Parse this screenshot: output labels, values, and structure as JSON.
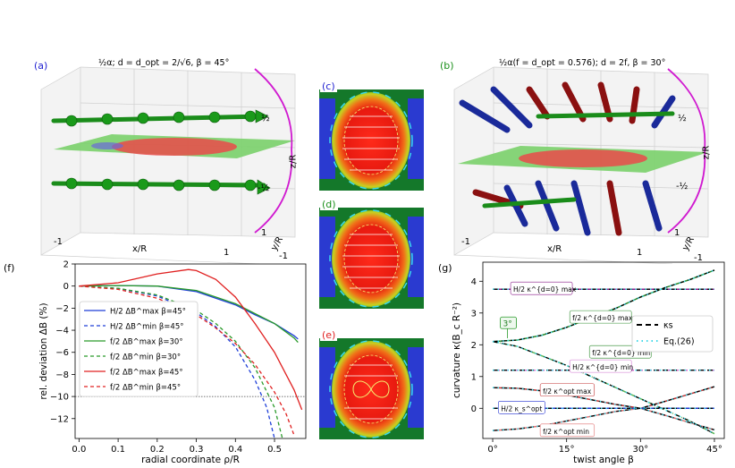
{
  "panels": {
    "a": {
      "label": "(a)",
      "caption": "½α;  d = d_opt = 2/√6, β = 45°",
      "zlabel": "z/R",
      "xlabel": "x/R",
      "ylabel": "y/R",
      "ticks_x": [
        "-1",
        "1"
      ],
      "ticks_y": [
        "1",
        "-1"
      ],
      "ticks_z": [
        "½",
        "-½"
      ]
    },
    "b": {
      "label": "(b)",
      "caption": "½α(f = d_opt = 0.576); d = 2f, β = 30°",
      "zlabel": "z/R",
      "xlabel": "x/R",
      "ylabel": "y/R",
      "ticks_x": [
        "-1",
        "1"
      ],
      "ticks_y": [
        "1",
        "-1"
      ],
      "ticks_z": [
        "½",
        "-½"
      ]
    },
    "c": {
      "label": "(c)"
    },
    "d": {
      "label": "(d)"
    },
    "e": {
      "label": "(e)"
    },
    "colors": {
      "a": "#1f1fd0",
      "b": "#1a8f1a",
      "c": "#1f1fd0",
      "d": "#1a8f1a",
      "e": "#e02020",
      "f": "#000000",
      "g": "#000000"
    }
  },
  "chart_data": [
    {
      "id": "f",
      "label": "(f)",
      "type": "line",
      "xlabel": "radial coordinate ρ/R",
      "ylabel": "rel. deviation ΔB (%)",
      "xlim": [
        -0.01,
        0.58
      ],
      "ylim": [
        -13.8,
        2.0
      ],
      "xticks": [
        0.0,
        0.1,
        0.2,
        0.3,
        0.4,
        0.5
      ],
      "xtick_labels": [
        "0.0",
        "0.1",
        "0.2",
        "0.3",
        "0.4",
        "0.5"
      ],
      "yticks": [
        2,
        0,
        -2,
        -4,
        -6,
        -8,
        -10,
        -12
      ],
      "ytick_labels": [
        "2",
        "0",
        "−2",
        "−4",
        "−6",
        "−8",
        "−10",
        "−12"
      ],
      "hline": -10,
      "legend": [
        "H/2 ΔB^max β=45°",
        "H/2 ΔB^min β=45°",
        "f/2 ΔB^max β=30°",
        "f/2 ΔB^min β=30°",
        "f/2 ΔB^max β=45°",
        "f/2 ΔB^min β=45°"
      ],
      "series": [
        {
          "name": "H/2 ΔB^max β=45°",
          "color": "#1f3fd8",
          "dash": "",
          "x": [
            0,
            0.1,
            0.2,
            0.3,
            0.4,
            0.45,
            0.5,
            0.55,
            0.56
          ],
          "y": [
            0,
            0.05,
            0.0,
            -0.5,
            -1.7,
            -2.6,
            -3.4,
            -4.5,
            -4.8
          ]
        },
        {
          "name": "H/2 ΔB^min β=45°",
          "color": "#1f3fd8",
          "dash": "4,3",
          "x": [
            0,
            0.1,
            0.2,
            0.3,
            0.35,
            0.4,
            0.45,
            0.48,
            0.5
          ],
          "y": [
            0,
            -0.2,
            -0.9,
            -2.4,
            -3.7,
            -5.5,
            -8.5,
            -11.0,
            -13.8
          ]
        },
        {
          "name": "f/2 ΔB^max β=30°",
          "color": "#2a9a2a",
          "dash": "",
          "x": [
            0,
            0.1,
            0.2,
            0.3,
            0.4,
            0.45,
            0.5,
            0.55,
            0.56
          ],
          "y": [
            0,
            0.05,
            0.0,
            -0.4,
            -1.6,
            -2.5,
            -3.4,
            -4.7,
            -5.1
          ]
        },
        {
          "name": "f/2 ΔB^min β=30°",
          "color": "#2a9a2a",
          "dash": "4,3",
          "x": [
            0,
            0.1,
            0.2,
            0.3,
            0.35,
            0.4,
            0.45,
            0.5,
            0.52
          ],
          "y": [
            0,
            -0.2,
            -0.8,
            -2.2,
            -3.4,
            -5.0,
            -7.4,
            -11.0,
            -13.8
          ]
        },
        {
          "name": "f/2 ΔB^max β=45°",
          "color": "#e02020",
          "dash": "",
          "x": [
            0,
            0.1,
            0.2,
            0.28,
            0.3,
            0.35,
            0.4,
            0.45,
            0.5,
            0.55,
            0.57
          ],
          "y": [
            0,
            0.3,
            1.1,
            1.5,
            1.4,
            0.6,
            -1.0,
            -3.4,
            -6.0,
            -9.4,
            -11.2
          ]
        },
        {
          "name": "f/2 ΔB^min β=45°",
          "color": "#e02020",
          "dash": "4,3",
          "x": [
            0,
            0.1,
            0.2,
            0.3,
            0.35,
            0.4,
            0.45,
            0.5,
            0.53,
            0.55
          ],
          "y": [
            0,
            -0.3,
            -1.1,
            -2.6,
            -3.8,
            -5.2,
            -7.1,
            -9.6,
            -11.6,
            -13.5
          ]
        }
      ]
    },
    {
      "id": "g",
      "label": "(g)",
      "type": "line",
      "xlabel": "twist angle β",
      "ylabel": "curvature κ(B_c R⁻²)",
      "xlim": [
        -2,
        47
      ],
      "ylim": [
        -0.95,
        4.6
      ],
      "xticks": [
        0,
        15,
        30,
        45
      ],
      "xtick_labels": [
        "0°",
        "15°",
        "30°",
        "45°"
      ],
      "yticks": [
        0,
        1,
        2,
        3,
        4
      ],
      "ytick_labels": [
        "0",
        "1",
        "2",
        "3",
        "4"
      ],
      "legend": [
        "κs",
        "Eq.(26)"
      ],
      "annotation": "3°",
      "curve_labels": [
        "H/2 κ^{d=0} max",
        "f/2 κ^{d=0} max",
        "f/2 κ^{d=0} min",
        "H/2 κ^{d=0} min",
        "f/2 κ^opt max",
        "H/2 κ_s^opt",
        "f/2 κ^opt min"
      ],
      "series": [
        {
          "name": "H/2 κ d=0 max",
          "color": "#8a1a8a",
          "dash": "",
          "x": [
            0,
            45
          ],
          "y": [
            3.75,
            3.75
          ]
        },
        {
          "name": "H/2 κ d=0 min",
          "color": "#d070d0",
          "dash": "3,2",
          "x": [
            0,
            45
          ],
          "y": [
            1.2,
            1.2
          ]
        },
        {
          "name": "f/2 κ d=0 max",
          "color": "#2a8a2a",
          "dash": "",
          "x": [
            0,
            5,
            10,
            15,
            20,
            25,
            30,
            35,
            40,
            45
          ],
          "y": [
            2.1,
            2.15,
            2.3,
            2.55,
            2.85,
            3.15,
            3.5,
            3.8,
            4.05,
            4.35
          ]
        },
        {
          "name": "f/2 κ d=0 min",
          "color": "#5ab85a",
          "dash": "6,2,1,2",
          "x": [
            0,
            5,
            10,
            15,
            20,
            25,
            30,
            35,
            40,
            45
          ],
          "y": [
            2.1,
            1.95,
            1.65,
            1.35,
            1.0,
            0.65,
            0.3,
            -0.05,
            -0.4,
            -0.8
          ]
        },
        {
          "name": "f/2 κ opt max",
          "color": "#c03030",
          "dash": "",
          "x": [
            0,
            5,
            10,
            15,
            20,
            25,
            30,
            35,
            40,
            45
          ],
          "y": [
            0.65,
            0.63,
            0.55,
            0.42,
            0.27,
            0.12,
            0.0,
            0.22,
            0.45,
            0.68
          ]
        },
        {
          "name": "f/2 κ opt min",
          "color": "#e07070",
          "dash": "",
          "x": [
            0,
            5,
            10,
            15,
            20,
            25,
            30,
            35,
            40,
            45
          ],
          "y": [
            -0.7,
            -0.65,
            -0.55,
            -0.4,
            -0.25,
            -0.1,
            0.0,
            -0.22,
            -0.45,
            -0.68
          ]
        },
        {
          "name": "H/2 κs opt",
          "color": "#1f2fd0",
          "dash": "",
          "x": [
            0,
            45
          ],
          "y": [
            0,
            0
          ]
        },
        {
          "name": "κs",
          "color": "#000000",
          "dash": "6,4",
          "x": [],
          "y": []
        },
        {
          "name": "Eq.(26)",
          "color": "#40d8e8",
          "dash": "1.5,4",
          "x": [],
          "y": []
        }
      ]
    }
  ]
}
